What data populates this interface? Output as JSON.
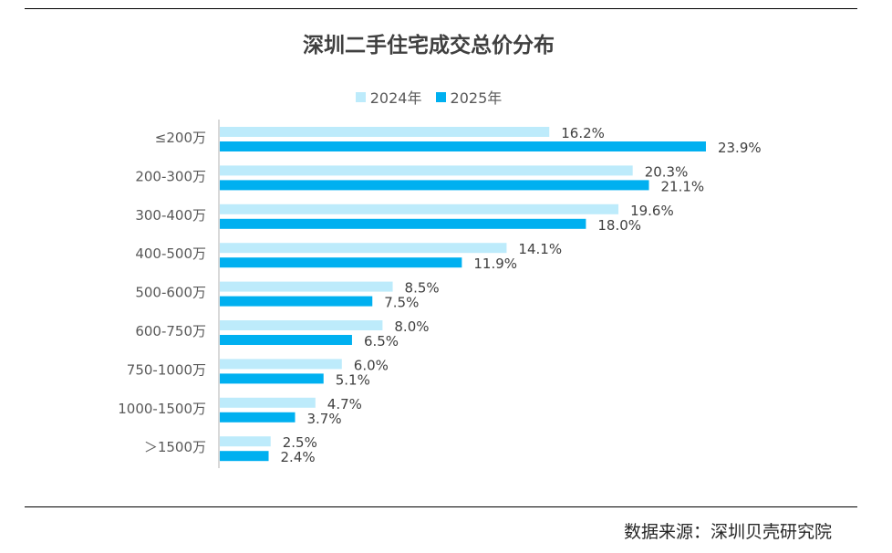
{
  "chart_data": {
    "type": "bar",
    "orientation": "horizontal",
    "title": "深圳二手住宅成交总价分布",
    "categories": [
      "≤200万",
      "200-300万",
      "300-400万",
      "400-500万",
      "500-600万",
      "600-750万",
      "750-1000万",
      "1000-1500万",
      "＞1500万"
    ],
    "series": [
      {
        "name": "2024年",
        "color": "#BDEBFB",
        "values": [
          16.2,
          20.3,
          19.6,
          14.1,
          8.5,
          8.0,
          6.0,
          4.7,
          2.5
        ],
        "labels": [
          "16.2%",
          "20.3%",
          "19.6%",
          "14.1%",
          "8.5%",
          "8.0%",
          "6.0%",
          "4.7%",
          "2.5%"
        ]
      },
      {
        "name": "2025年",
        "color": "#00B0F0",
        "values": [
          23.9,
          21.1,
          18.0,
          11.9,
          7.5,
          6.5,
          5.1,
          3.7,
          2.4
        ],
        "labels": [
          "23.9%",
          "21.1%",
          "18.0%",
          "11.9%",
          "7.5%",
          "6.5%",
          "5.1%",
          "3.7%",
          "2.4%"
        ]
      }
    ],
    "unit": "%",
    "xlim": [
      0,
      25
    ],
    "grid": false,
    "legend_position": "top-center",
    "xlabel": "",
    "ylabel": ""
  },
  "source": "数据来源：深圳贝壳研究院"
}
